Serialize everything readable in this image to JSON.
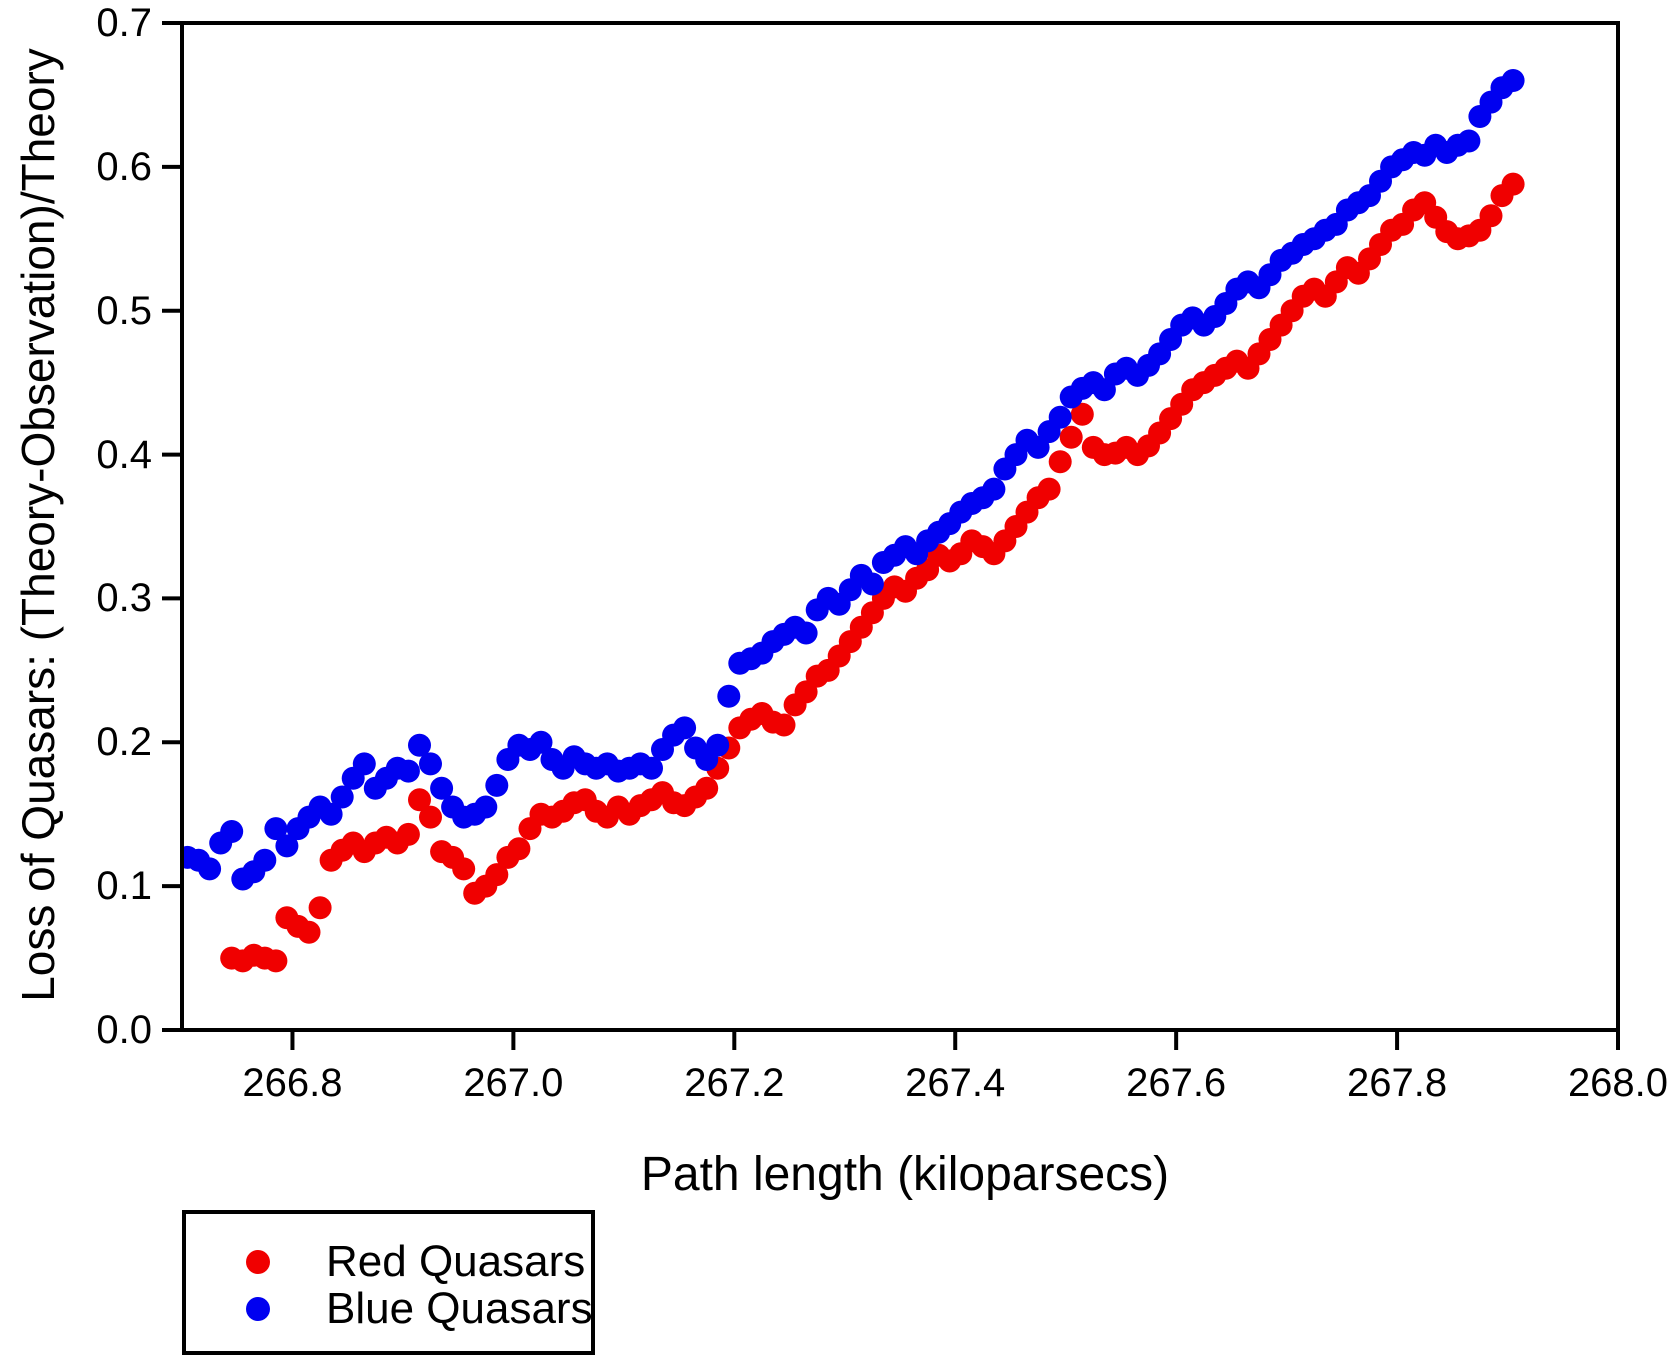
{
  "figure": {
    "background": "#ffffff",
    "axis_color": "#000000"
  },
  "legend": {
    "items": [
      {
        "label": "Red Quasars",
        "color": "#f00000"
      },
      {
        "label": "Blue Quasars",
        "color": "#0000f0"
      }
    ]
  },
  "chart_data": {
    "type": "scatter",
    "title": "",
    "xlabel": "Path length (kiloparsecs)",
    "ylabel": "Loss of Quasars: (Theory-Observation)/Theory",
    "xlim": [
      266.7,
      268.0
    ],
    "ylim": [
      0.0,
      0.7
    ],
    "x_tick_labels": [
      "266.8",
      "267.0",
      "267.2",
      "267.4",
      "267.6",
      "267.8",
      "268.0"
    ],
    "y_tick_labels": [
      "0.0",
      "0.1",
      "0.2",
      "0.3",
      "0.4",
      "0.5",
      "0.6",
      "0.7"
    ],
    "grid": false,
    "legend_position": "below-left",
    "marker": "circle",
    "marker_radius_px": 11.5,
    "series": [
      {
        "name": "Red Quasars",
        "color": "#f00000",
        "points": [
          [
            266.745,
            0.05
          ],
          [
            266.755,
            0.048
          ],
          [
            266.765,
            0.052
          ],
          [
            266.775,
            0.05
          ],
          [
            266.785,
            0.048
          ],
          [
            266.795,
            0.078
          ],
          [
            266.805,
            0.072
          ],
          [
            266.815,
            0.068
          ],
          [
            266.825,
            0.085
          ],
          [
            266.835,
            0.118
          ],
          [
            266.845,
            0.125
          ],
          [
            266.855,
            0.13
          ],
          [
            266.865,
            0.124
          ],
          [
            266.875,
            0.13
          ],
          [
            266.885,
            0.134
          ],
          [
            266.895,
            0.13
          ],
          [
            266.905,
            0.136
          ],
          [
            266.915,
            0.16
          ],
          [
            266.925,
            0.148
          ],
          [
            266.935,
            0.124
          ],
          [
            266.945,
            0.12
          ],
          [
            266.955,
            0.112
          ],
          [
            266.965,
            0.095
          ],
          [
            266.975,
            0.1
          ],
          [
            266.985,
            0.108
          ],
          [
            266.995,
            0.12
          ],
          [
            267.005,
            0.126
          ],
          [
            267.015,
            0.14
          ],
          [
            267.025,
            0.15
          ],
          [
            267.035,
            0.148
          ],
          [
            267.045,
            0.152
          ],
          [
            267.055,
            0.158
          ],
          [
            267.065,
            0.16
          ],
          [
            267.075,
            0.152
          ],
          [
            267.085,
            0.148
          ],
          [
            267.095,
            0.155
          ],
          [
            267.105,
            0.15
          ],
          [
            267.115,
            0.156
          ],
          [
            267.125,
            0.16
          ],
          [
            267.135,
            0.165
          ],
          [
            267.145,
            0.158
          ],
          [
            267.155,
            0.156
          ],
          [
            267.165,
            0.162
          ],
          [
            267.175,
            0.168
          ],
          [
            267.185,
            0.182
          ],
          [
            267.195,
            0.196
          ],
          [
            267.205,
            0.21
          ],
          [
            267.215,
            0.216
          ],
          [
            267.225,
            0.22
          ],
          [
            267.235,
            0.214
          ],
          [
            267.245,
            0.212
          ],
          [
            267.255,
            0.226
          ],
          [
            267.265,
            0.235
          ],
          [
            267.275,
            0.246
          ],
          [
            267.285,
            0.25
          ],
          [
            267.295,
            0.26
          ],
          [
            267.305,
            0.27
          ],
          [
            267.315,
            0.28
          ],
          [
            267.325,
            0.29
          ],
          [
            267.335,
            0.3
          ],
          [
            267.345,
            0.308
          ],
          [
            267.355,
            0.305
          ],
          [
            267.365,
            0.314
          ],
          [
            267.375,
            0.32
          ],
          [
            267.385,
            0.33
          ],
          [
            267.395,
            0.326
          ],
          [
            267.405,
            0.331
          ],
          [
            267.415,
            0.34
          ],
          [
            267.425,
            0.336
          ],
          [
            267.435,
            0.331
          ],
          [
            267.445,
            0.34
          ],
          [
            267.455,
            0.35
          ],
          [
            267.465,
            0.36
          ],
          [
            267.475,
            0.37
          ],
          [
            267.485,
            0.376
          ],
          [
            267.495,
            0.395
          ],
          [
            267.505,
            0.412
          ],
          [
            267.515,
            0.428
          ],
          [
            267.525,
            0.405
          ],
          [
            267.535,
            0.4
          ],
          [
            267.545,
            0.401
          ],
          [
            267.555,
            0.405
          ],
          [
            267.565,
            0.4
          ],
          [
            267.575,
            0.406
          ],
          [
            267.585,
            0.415
          ],
          [
            267.595,
            0.425
          ],
          [
            267.605,
            0.435
          ],
          [
            267.615,
            0.445
          ],
          [
            267.625,
            0.45
          ],
          [
            267.635,
            0.455
          ],
          [
            267.645,
            0.46
          ],
          [
            267.655,
            0.465
          ],
          [
            267.665,
            0.46
          ],
          [
            267.675,
            0.47
          ],
          [
            267.685,
            0.48
          ],
          [
            267.695,
            0.49
          ],
          [
            267.705,
            0.5
          ],
          [
            267.715,
            0.51
          ],
          [
            267.725,
            0.515
          ],
          [
            267.735,
            0.51
          ],
          [
            267.745,
            0.52
          ],
          [
            267.755,
            0.53
          ],
          [
            267.765,
            0.526
          ],
          [
            267.775,
            0.536
          ],
          [
            267.785,
            0.546
          ],
          [
            267.795,
            0.556
          ],
          [
            267.805,
            0.56
          ],
          [
            267.815,
            0.57
          ],
          [
            267.825,
            0.575
          ],
          [
            267.835,
            0.565
          ],
          [
            267.845,
            0.555
          ],
          [
            267.855,
            0.55
          ],
          [
            267.865,
            0.552
          ],
          [
            267.875,
            0.556
          ],
          [
            267.885,
            0.566
          ],
          [
            267.895,
            0.58
          ],
          [
            267.905,
            0.588
          ]
        ]
      },
      {
        "name": "Blue Quasars",
        "color": "#0000f0",
        "points": [
          [
            266.705,
            0.12
          ],
          [
            266.715,
            0.118
          ],
          [
            266.725,
            0.112
          ],
          [
            266.735,
            0.13
          ],
          [
            266.745,
            0.138
          ],
          [
            266.755,
            0.105
          ],
          [
            266.765,
            0.11
          ],
          [
            266.775,
            0.118
          ],
          [
            266.785,
            0.14
          ],
          [
            266.795,
            0.128
          ],
          [
            266.805,
            0.14
          ],
          [
            266.815,
            0.148
          ],
          [
            266.825,
            0.155
          ],
          [
            266.835,
            0.15
          ],
          [
            266.845,
            0.162
          ],
          [
            266.855,
            0.175
          ],
          [
            266.865,
            0.185
          ],
          [
            266.875,
            0.168
          ],
          [
            266.885,
            0.175
          ],
          [
            266.895,
            0.182
          ],
          [
            266.905,
            0.18
          ],
          [
            266.915,
            0.198
          ],
          [
            266.925,
            0.185
          ],
          [
            266.935,
            0.168
          ],
          [
            266.945,
            0.155
          ],
          [
            266.955,
            0.148
          ],
          [
            266.965,
            0.15
          ],
          [
            266.975,
            0.155
          ],
          [
            266.985,
            0.17
          ],
          [
            266.995,
            0.188
          ],
          [
            267.005,
            0.198
          ],
          [
            267.015,
            0.195
          ],
          [
            267.025,
            0.2
          ],
          [
            267.035,
            0.188
          ],
          [
            267.045,
            0.182
          ],
          [
            267.055,
            0.19
          ],
          [
            267.065,
            0.185
          ],
          [
            267.075,
            0.182
          ],
          [
            267.085,
            0.185
          ],
          [
            267.095,
            0.18
          ],
          [
            267.105,
            0.182
          ],
          [
            267.115,
            0.185
          ],
          [
            267.125,
            0.182
          ],
          [
            267.135,
            0.195
          ],
          [
            267.145,
            0.205
          ],
          [
            267.155,
            0.21
          ],
          [
            267.165,
            0.196
          ],
          [
            267.175,
            0.188
          ],
          [
            267.185,
            0.198
          ],
          [
            267.195,
            0.232
          ],
          [
            267.205,
            0.255
          ],
          [
            267.215,
            0.258
          ],
          [
            267.225,
            0.262
          ],
          [
            267.235,
            0.27
          ],
          [
            267.245,
            0.275
          ],
          [
            267.255,
            0.28
          ],
          [
            267.265,
            0.276
          ],
          [
            267.275,
            0.292
          ],
          [
            267.285,
            0.3
          ],
          [
            267.295,
            0.296
          ],
          [
            267.305,
            0.306
          ],
          [
            267.315,
            0.316
          ],
          [
            267.325,
            0.31
          ],
          [
            267.335,
            0.325
          ],
          [
            267.345,
            0.33
          ],
          [
            267.355,
            0.336
          ],
          [
            267.365,
            0.331
          ],
          [
            267.375,
            0.34
          ],
          [
            267.385,
            0.346
          ],
          [
            267.395,
            0.352
          ],
          [
            267.405,
            0.36
          ],
          [
            267.415,
            0.366
          ],
          [
            267.425,
            0.37
          ],
          [
            267.435,
            0.376
          ],
          [
            267.445,
            0.39
          ],
          [
            267.455,
            0.4
          ],
          [
            267.465,
            0.41
          ],
          [
            267.475,
            0.405
          ],
          [
            267.485,
            0.416
          ],
          [
            267.495,
            0.426
          ],
          [
            267.505,
            0.44
          ],
          [
            267.515,
            0.446
          ],
          [
            267.525,
            0.45
          ],
          [
            267.535,
            0.445
          ],
          [
            267.545,
            0.456
          ],
          [
            267.555,
            0.46
          ],
          [
            267.565,
            0.455
          ],
          [
            267.575,
            0.462
          ],
          [
            267.585,
            0.47
          ],
          [
            267.595,
            0.48
          ],
          [
            267.605,
            0.49
          ],
          [
            267.615,
            0.495
          ],
          [
            267.625,
            0.49
          ],
          [
            267.635,
            0.496
          ],
          [
            267.645,
            0.505
          ],
          [
            267.655,
            0.515
          ],
          [
            267.665,
            0.52
          ],
          [
            267.675,
            0.516
          ],
          [
            267.685,
            0.525
          ],
          [
            267.695,
            0.535
          ],
          [
            267.705,
            0.54
          ],
          [
            267.715,
            0.546
          ],
          [
            267.725,
            0.55
          ],
          [
            267.735,
            0.556
          ],
          [
            267.745,
            0.56
          ],
          [
            267.755,
            0.57
          ],
          [
            267.765,
            0.575
          ],
          [
            267.775,
            0.58
          ],
          [
            267.785,
            0.59
          ],
          [
            267.795,
            0.6
          ],
          [
            267.805,
            0.605
          ],
          [
            267.815,
            0.61
          ],
          [
            267.825,
            0.608
          ],
          [
            267.835,
            0.615
          ],
          [
            267.845,
            0.61
          ],
          [
            267.855,
            0.615
          ],
          [
            267.865,
            0.618
          ],
          [
            267.875,
            0.635
          ],
          [
            267.885,
            0.645
          ],
          [
            267.895,
            0.655
          ],
          [
            267.905,
            0.66
          ]
        ]
      }
    ]
  }
}
